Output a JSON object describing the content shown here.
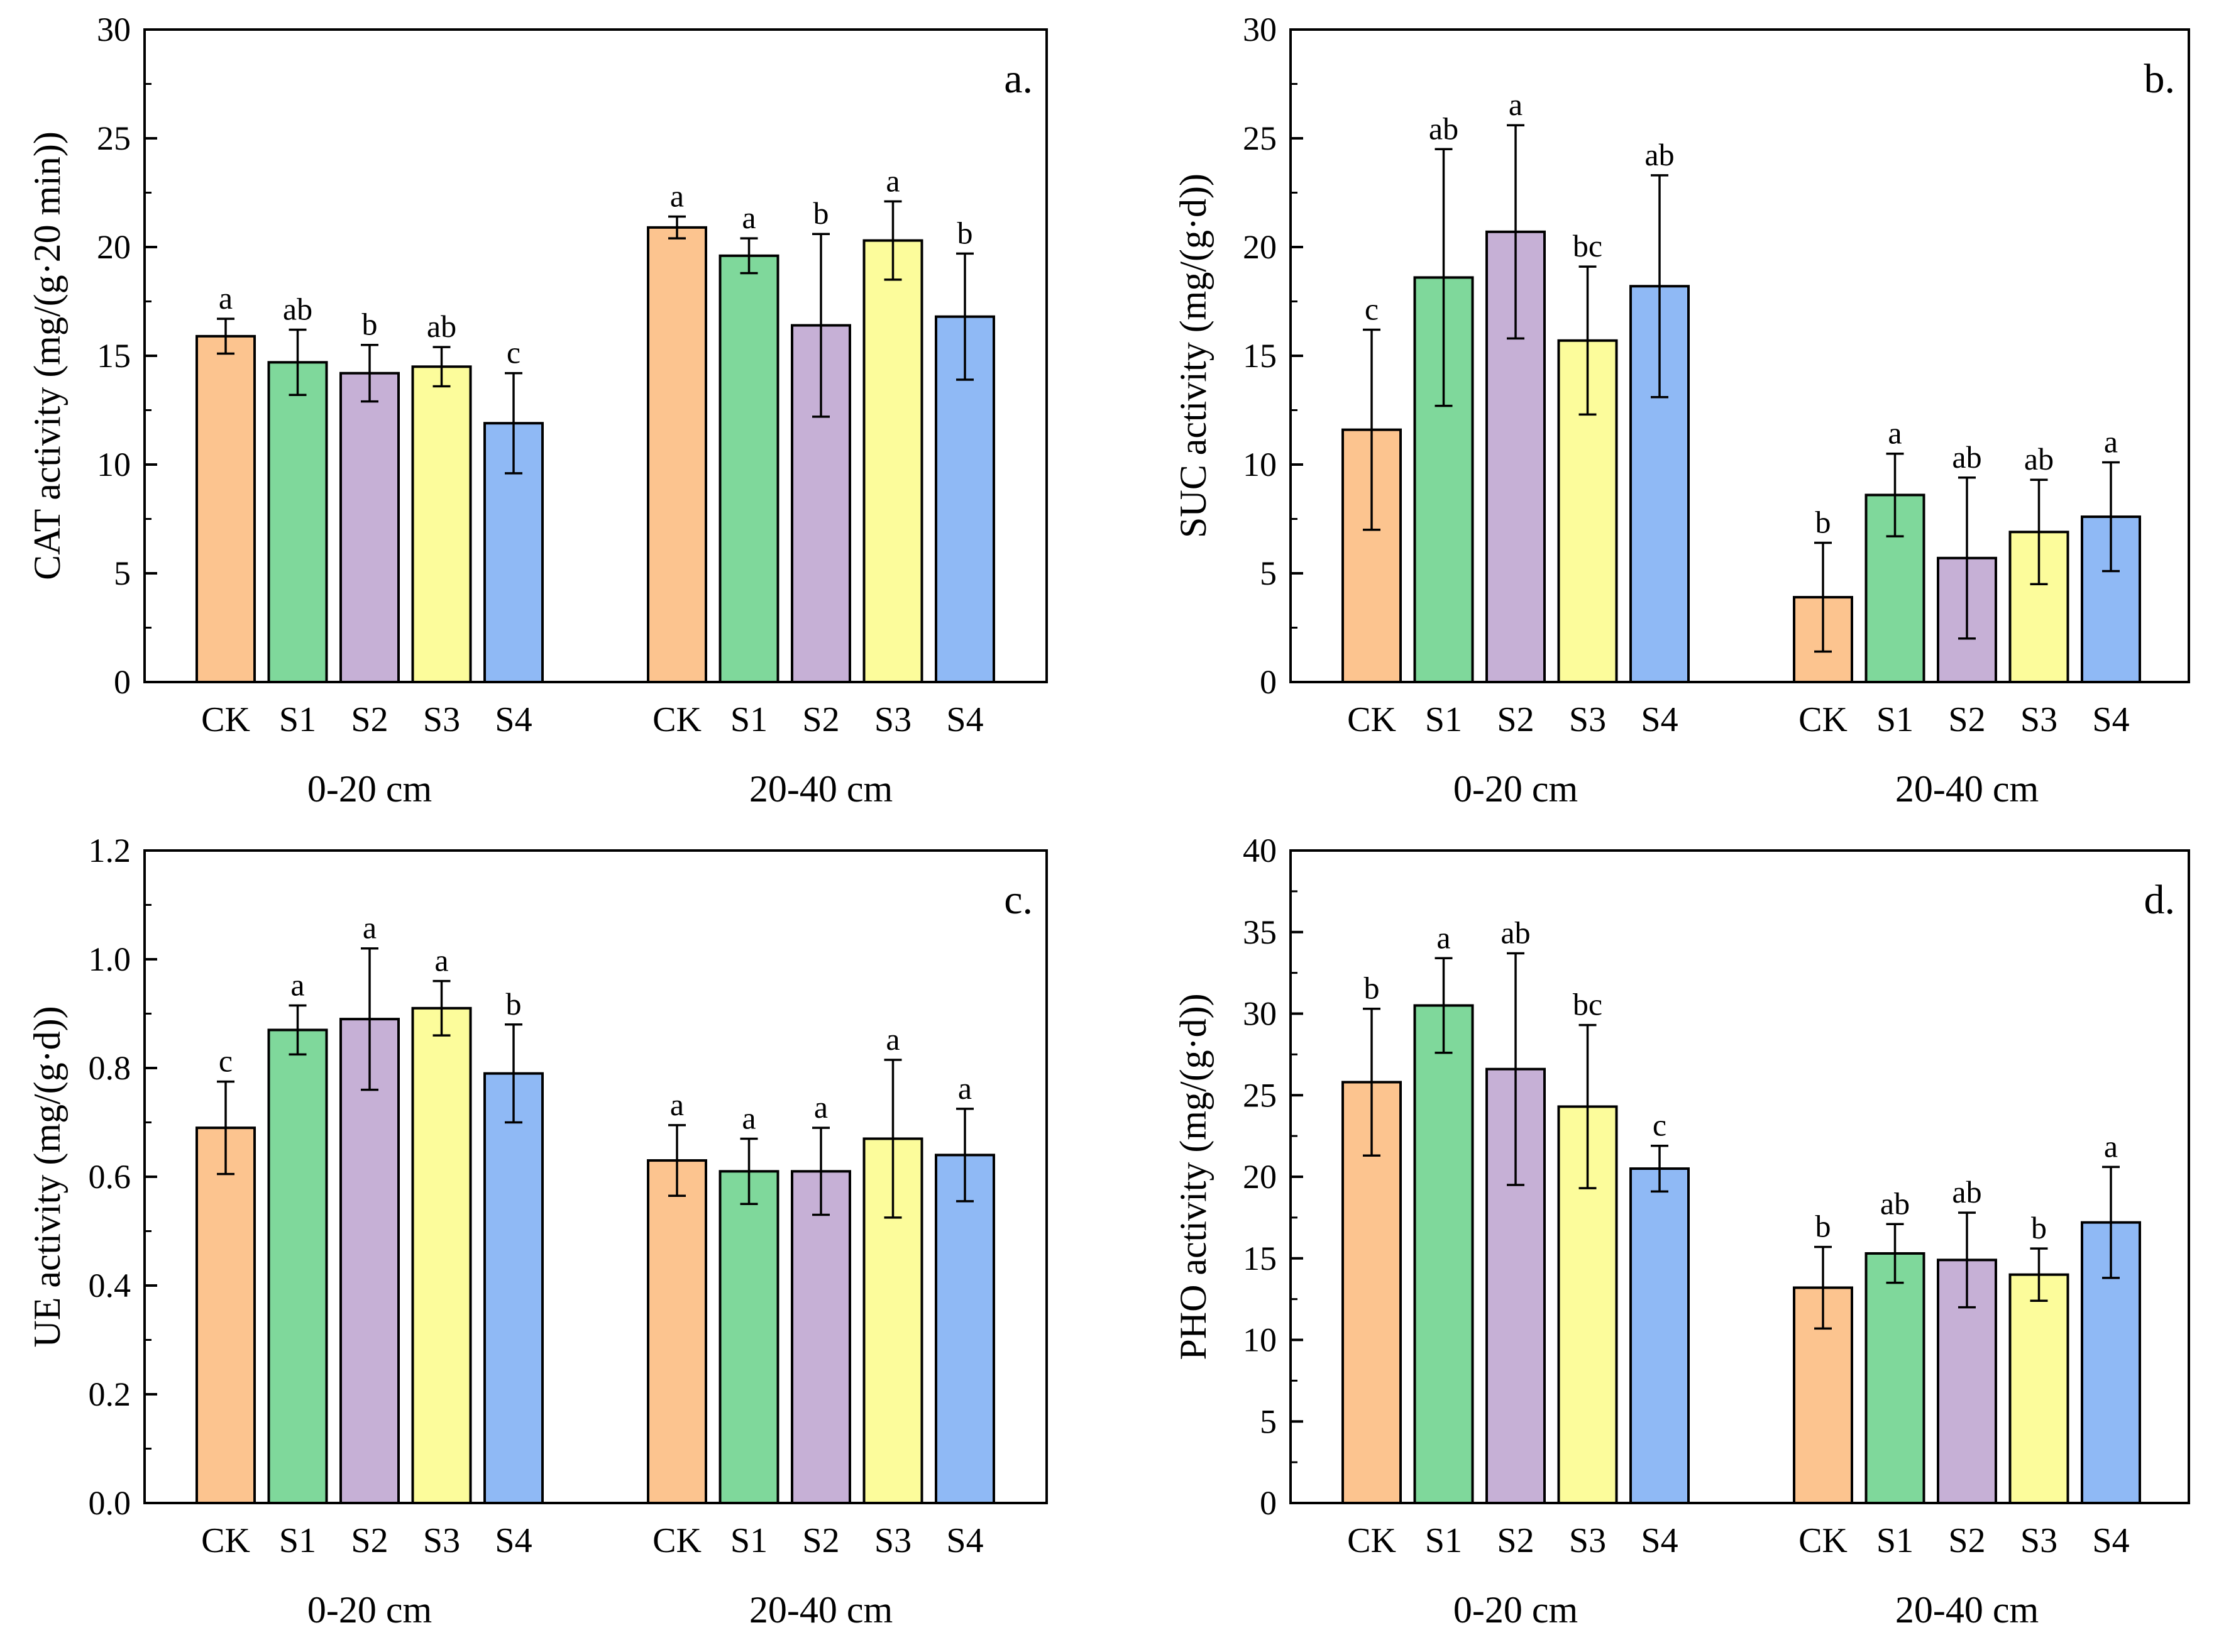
{
  "chart_data": [
    {
      "type": "bar",
      "panel_label": "a.",
      "ylabel": "CAT activity (mg/(g·20 min))",
      "ylim": [
        0,
        30
      ],
      "yticks": [
        "0",
        "5",
        "10",
        "15",
        "20",
        "25",
        "30"
      ],
      "categories": [
        "CK",
        "S1",
        "S2",
        "S3",
        "S4"
      ],
      "groups": [
        {
          "label": "0-20 cm",
          "values": [
            15.9,
            14.7,
            14.2,
            14.5,
            11.9
          ],
          "errors": [
            0.8,
            1.5,
            1.3,
            0.9,
            2.3
          ],
          "letters": [
            "a",
            "ab",
            "b",
            "ab",
            "c"
          ]
        },
        {
          "label": "20-40 cm",
          "values": [
            20.9,
            19.6,
            16.4,
            20.3,
            16.8
          ],
          "errors": [
            0.5,
            0.8,
            4.2,
            1.8,
            2.9
          ],
          "letters": [
            "a",
            "a",
            "b",
            "a",
            "b"
          ]
        }
      ]
    },
    {
      "type": "bar",
      "panel_label": "b.",
      "ylabel": "SUC activity (mg/(g·d))",
      "ylim": [
        0,
        30
      ],
      "yticks": [
        "0",
        "5",
        "10",
        "15",
        "20",
        "25",
        "30"
      ],
      "categories": [
        "CK",
        "S1",
        "S2",
        "S3",
        "S4"
      ],
      "groups": [
        {
          "label": "0-20 cm",
          "values": [
            11.6,
            18.6,
            20.7,
            15.7,
            18.2
          ],
          "errors": [
            4.6,
            5.9,
            4.9,
            3.4,
            5.1
          ],
          "letters": [
            "c",
            "ab",
            "a",
            "bc",
            "ab"
          ]
        },
        {
          "label": "20-40 cm",
          "values": [
            3.9,
            8.6,
            5.7,
            6.9,
            7.6
          ],
          "errors": [
            2.5,
            1.9,
            3.7,
            2.4,
            2.5
          ],
          "letters": [
            "b",
            "a",
            "ab",
            "ab",
            "a"
          ]
        }
      ]
    },
    {
      "type": "bar",
      "panel_label": "c.",
      "ylabel": "UE activity (mg/(g·d))",
      "ylim": [
        0,
        1.2
      ],
      "yticks": [
        "0.0",
        "0.2",
        "0.4",
        "0.6",
        "0.8",
        "1.0",
        "1.2"
      ],
      "categories": [
        "CK",
        "S1",
        "S2",
        "S3",
        "S4"
      ],
      "groups": [
        {
          "label": "0-20 cm",
          "values": [
            0.69,
            0.87,
            0.89,
            0.91,
            0.79
          ],
          "errors": [
            0.085,
            0.045,
            0.13,
            0.05,
            0.09
          ],
          "letters": [
            "c",
            "a",
            "a",
            "a",
            "b"
          ]
        },
        {
          "label": "20-40 cm",
          "values": [
            0.63,
            0.61,
            0.61,
            0.67,
            0.64
          ],
          "errors": [
            0.065,
            0.06,
            0.08,
            0.145,
            0.085
          ],
          "letters": [
            "a",
            "a",
            "a",
            "a",
            "a"
          ]
        }
      ]
    },
    {
      "type": "bar",
      "panel_label": "d.",
      "ylabel": "PHO activity (mg/(g·d))",
      "ylim": [
        0,
        40
      ],
      "yticks": [
        "0",
        "5",
        "10",
        "15",
        "20",
        "25",
        "30",
        "35",
        "40"
      ],
      "categories": [
        "CK",
        "S1",
        "S2",
        "S3",
        "S4"
      ],
      "groups": [
        {
          "label": "0-20 cm",
          "values": [
            25.8,
            30.5,
            26.6,
            24.3,
            20.5
          ],
          "errors": [
            4.5,
            2.9,
            7.1,
            5.0,
            1.4
          ],
          "letters": [
            "b",
            "a",
            "ab",
            "bc",
            "c"
          ]
        },
        {
          "label": "20-40 cm",
          "values": [
            13.2,
            15.3,
            14.9,
            14.0,
            17.2
          ],
          "errors": [
            2.5,
            1.8,
            2.9,
            1.6,
            3.4
          ],
          "letters": [
            "b",
            "ab",
            "ab",
            "b",
            "a"
          ]
        }
      ]
    }
  ],
  "colors": {
    "CK": "#fcc48f",
    "S1": "#7fd89b",
    "S2": "#c6b0d6",
    "S3": "#fcfc9b",
    "S4": "#8fb9f5"
  }
}
